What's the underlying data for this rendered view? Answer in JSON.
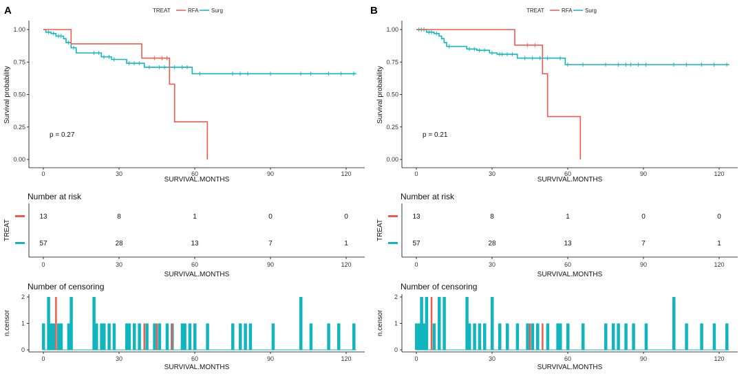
{
  "colors": {
    "rfa": "#f05a4c",
    "surg": "#11b5be"
  },
  "chart_data": [
    {
      "panel_label": "A",
      "type": "line",
      "title": "",
      "legend": {
        "title": "TREAT",
        "entries": [
          "RFA",
          "Surg"
        ],
        "placement": "top"
      },
      "xlabel": "SURVIVAL.MONTHS",
      "ylabel": "Survival probability",
      "xlim": [
        0,
        125
      ],
      "ylim": [
        0,
        1.0
      ],
      "xticks": [
        "0",
        "30",
        "60",
        "90",
        "120"
      ],
      "yticks": [
        "0.00",
        "0.25",
        "0.50",
        "0.75",
        "1.00"
      ],
      "p_value": "p = 0.27",
      "series": [
        {
          "name": "RFA",
          "steps": [
            [
              0,
              1.0
            ],
            [
              11,
              0.89
            ],
            [
              39,
              0.78
            ],
            [
              50,
              0.58
            ],
            [
              52,
              0.29
            ],
            [
              65,
              0.0
            ]
          ],
          "censor_x": [
            44,
            47,
            49
          ]
        },
        {
          "name": "Surg",
          "steps": [
            [
              0,
              1.0
            ],
            [
              1,
              0.98
            ],
            [
              3,
              0.97
            ],
            [
              5,
              0.95
            ],
            [
              8,
              0.93
            ],
            [
              9,
              0.9
            ],
            [
              11,
              0.86
            ],
            [
              13,
              0.82
            ],
            [
              23,
              0.79
            ],
            [
              27,
              0.77
            ],
            [
              33,
              0.74
            ],
            [
              39,
              0.74
            ],
            [
              40,
              0.71
            ],
            [
              50,
              0.71
            ],
            [
              59,
              0.66
            ],
            [
              124,
              0.66
            ]
          ],
          "censor_x": [
            2,
            4,
            6,
            7,
            10,
            12,
            20,
            22,
            24,
            26,
            28,
            34,
            36,
            38,
            42,
            46,
            48,
            52,
            55,
            57,
            62,
            75,
            78,
            81,
            90,
            102,
            106,
            113,
            118,
            123
          ]
        }
      ],
      "risk_table": {
        "title": "Number at risk",
        "ylabel": "TREAT",
        "xlabel": "SURVIVAL.MONTHS",
        "times": [
          "0",
          "30",
          "60",
          "90",
          "120"
        ],
        "rows": [
          {
            "group": "RFA",
            "values": [
              "13",
              "8",
              "1",
              "0",
              "0"
            ]
          },
          {
            "group": "Surg",
            "values": [
              "57",
              "28",
              "13",
              "7",
              "1"
            ]
          }
        ]
      },
      "censoring": {
        "title": "Number of censoring",
        "ylabel": "n.censor",
        "xlabel": "SURVIVAL.MONTHS",
        "yticks": [
          "0",
          "1",
          "2"
        ],
        "surg": [
          [
            0,
            1
          ],
          [
            2,
            2
          ],
          [
            3,
            1
          ],
          [
            4,
            1
          ],
          [
            6,
            1
          ],
          [
            7,
            1
          ],
          [
            10,
            1
          ],
          [
            11,
            2
          ],
          [
            20,
            2
          ],
          [
            21,
            1
          ],
          [
            23,
            1
          ],
          [
            24,
            1
          ],
          [
            26,
            1
          ],
          [
            28,
            1
          ],
          [
            33,
            1
          ],
          [
            34,
            1
          ],
          [
            36,
            1
          ],
          [
            38,
            1
          ],
          [
            41,
            1
          ],
          [
            44,
            1
          ],
          [
            46,
            1
          ],
          [
            49,
            1
          ],
          [
            51,
            1
          ],
          [
            55,
            1
          ],
          [
            56,
            1
          ],
          [
            58,
            1
          ],
          [
            60,
            1
          ],
          [
            65,
            1
          ],
          [
            75,
            1
          ],
          [
            78,
            1
          ],
          [
            80,
            1
          ],
          [
            82,
            1
          ],
          [
            91,
            1
          ],
          [
            102,
            2
          ],
          [
            106,
            1
          ],
          [
            113,
            1
          ],
          [
            117,
            1
          ],
          [
            123,
            1
          ]
        ],
        "rfa": [
          [
            5,
            2
          ],
          [
            40,
            1
          ],
          [
            45,
            1
          ],
          [
            51,
            1
          ]
        ]
      }
    },
    {
      "panel_label": "B",
      "type": "line",
      "title": "",
      "legend": {
        "title": "TREAT",
        "entries": [
          "RFA",
          "Surg"
        ],
        "placement": "top"
      },
      "xlabel": "SURVIVAL.MONTHS",
      "ylabel": "Survival probability",
      "xlim": [
        0,
        125
      ],
      "ylim": [
        0,
        1.0
      ],
      "xticks": [
        "0",
        "30",
        "60",
        "90",
        "120"
      ],
      "yticks": [
        "0.00",
        "0.25",
        "0.50",
        "0.75",
        "1.00"
      ],
      "p_value": "p = 0.21",
      "series": [
        {
          "name": "RFA",
          "steps": [
            [
              0,
              1.0
            ],
            [
              39,
              0.88
            ],
            [
              50,
              0.66
            ],
            [
              52,
              0.33
            ],
            [
              65,
              0.0
            ]
          ],
          "censor_x": [
            44,
            47
          ]
        },
        {
          "name": "Surg",
          "steps": [
            [
              0,
              1.0
            ],
            [
              4,
              0.98
            ],
            [
              7,
              0.97
            ],
            [
              9,
              0.95
            ],
            [
              10,
              0.93
            ],
            [
              11,
              0.9
            ],
            [
              12,
              0.87
            ],
            [
              20,
              0.85
            ],
            [
              24,
              0.84
            ],
            [
              29,
              0.82
            ],
            [
              32,
              0.81
            ],
            [
              40,
              0.78
            ],
            [
              59,
              0.73
            ],
            [
              124,
              0.73
            ]
          ],
          "censor_x": [
            1,
            2,
            3,
            5,
            6,
            8,
            13,
            21,
            23,
            25,
            27,
            30,
            33,
            34,
            36,
            38,
            43,
            46,
            49,
            52,
            57,
            60,
            66,
            75,
            80,
            83,
            85,
            88,
            91,
            102,
            107,
            113,
            118,
            123
          ]
        }
      ],
      "risk_table": {
        "title": "Number at risk",
        "ylabel": "TREAT",
        "xlabel": "SURVIVAL.MONTHS",
        "times": [
          "0",
          "30",
          "60",
          "90",
          "120"
        ],
        "rows": [
          {
            "group": "RFA",
            "values": [
              "13",
              "8",
              "1",
              "0",
              "0"
            ]
          },
          {
            "group": "Surg",
            "values": [
              "57",
              "28",
              "13",
              "7",
              "1"
            ]
          }
        ]
      },
      "censoring": {
        "title": "Number of censoring",
        "ylabel": "n.censor",
        "xlabel": "SURVIVAL.MONTHS",
        "yticks": [
          "0",
          "1",
          "2"
        ],
        "surg": [
          [
            0,
            1
          ],
          [
            1,
            1
          ],
          [
            2,
            2
          ],
          [
            3,
            1
          ],
          [
            4,
            2
          ],
          [
            7,
            1
          ],
          [
            9,
            2
          ],
          [
            11,
            2
          ],
          [
            20,
            2
          ],
          [
            21,
            1
          ],
          [
            23,
            1
          ],
          [
            25,
            1
          ],
          [
            27,
            1
          ],
          [
            30,
            2
          ],
          [
            33,
            1
          ],
          [
            36,
            1
          ],
          [
            40,
            1
          ],
          [
            44,
            1
          ],
          [
            46,
            1
          ],
          [
            48,
            1
          ],
          [
            52,
            1
          ],
          [
            56,
            1
          ],
          [
            57,
            1
          ],
          [
            60,
            1
          ],
          [
            66,
            1
          ],
          [
            75,
            1
          ],
          [
            78,
            1
          ],
          [
            80,
            1
          ],
          [
            83,
            1
          ],
          [
            86,
            1
          ],
          [
            91,
            1
          ],
          [
            102,
            2
          ],
          [
            107,
            1
          ],
          [
            113,
            1
          ],
          [
            118,
            1
          ],
          [
            123,
            1
          ]
        ],
        "rfa": [
          [
            6,
            2
          ],
          [
            45,
            1
          ],
          [
            50,
            1
          ]
        ]
      }
    }
  ]
}
